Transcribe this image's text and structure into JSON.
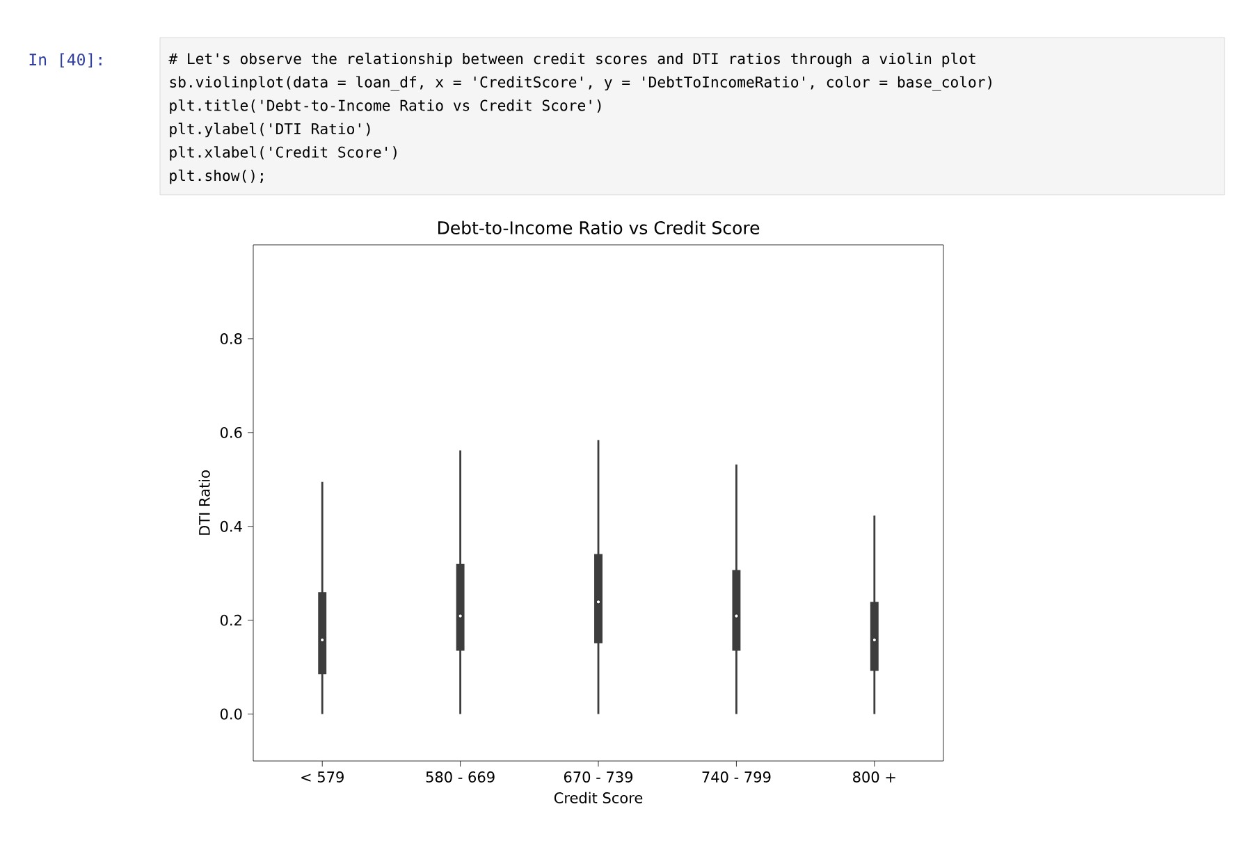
{
  "chart_data": {
    "type": "box",
    "title": "Debt-to-Income Ratio vs Credit Score",
    "xlabel": "Credit Score",
    "ylabel": "DTI Ratio",
    "categories": [
      "< 579",
      "580 - 669",
      "670 - 739",
      "740 - 799",
      "800 +"
    ],
    "series": [
      {
        "color": "#3d3d3d",
        "boxes": [
          {
            "low": 0.0,
            "q1": 0.085,
            "median": 0.158,
            "q3": 0.26,
            "high": 0.495
          },
          {
            "low": 0.0,
            "q1": 0.135,
            "median": 0.209,
            "q3": 0.32,
            "high": 0.562
          },
          {
            "low": 0.0,
            "q1": 0.151,
            "median": 0.239,
            "q3": 0.341,
            "high": 0.584
          },
          {
            "low": 0.0,
            "q1": 0.135,
            "median": 0.209,
            "q3": 0.307,
            "high": 0.532
          },
          {
            "low": 0.0,
            "q1": 0.092,
            "median": 0.158,
            "q3": 0.239,
            "high": 0.423
          }
        ]
      }
    ],
    "ylim": [
      -0.1,
      1.0
    ],
    "yticks": [
      {
        "value": 0,
        "label": "0.0"
      },
      {
        "value": 0.2,
        "label": "0.2"
      },
      {
        "value": 0.4,
        "label": "0.4"
      },
      {
        "value": 0.6,
        "label": "0.6"
      },
      {
        "value": 0.8,
        "label": "0.8"
      }
    ],
    "grid": false,
    "annotations": [
      "In [40]:",
      "# Let's observe the relationship between credit scores and DTI ratios through a violin plot",
      "sb.violinplot(data = loan_df, x = 'CreditScore', y = 'DebtToIncomeRatio', color = base_color)",
      "plt.title('Debt-to-Income Ratio vs Credit Score')",
      "plt.ylabel('DTI Ratio')",
      "plt.xlabel('Credit Score')",
      "plt.show();"
    ]
  }
}
